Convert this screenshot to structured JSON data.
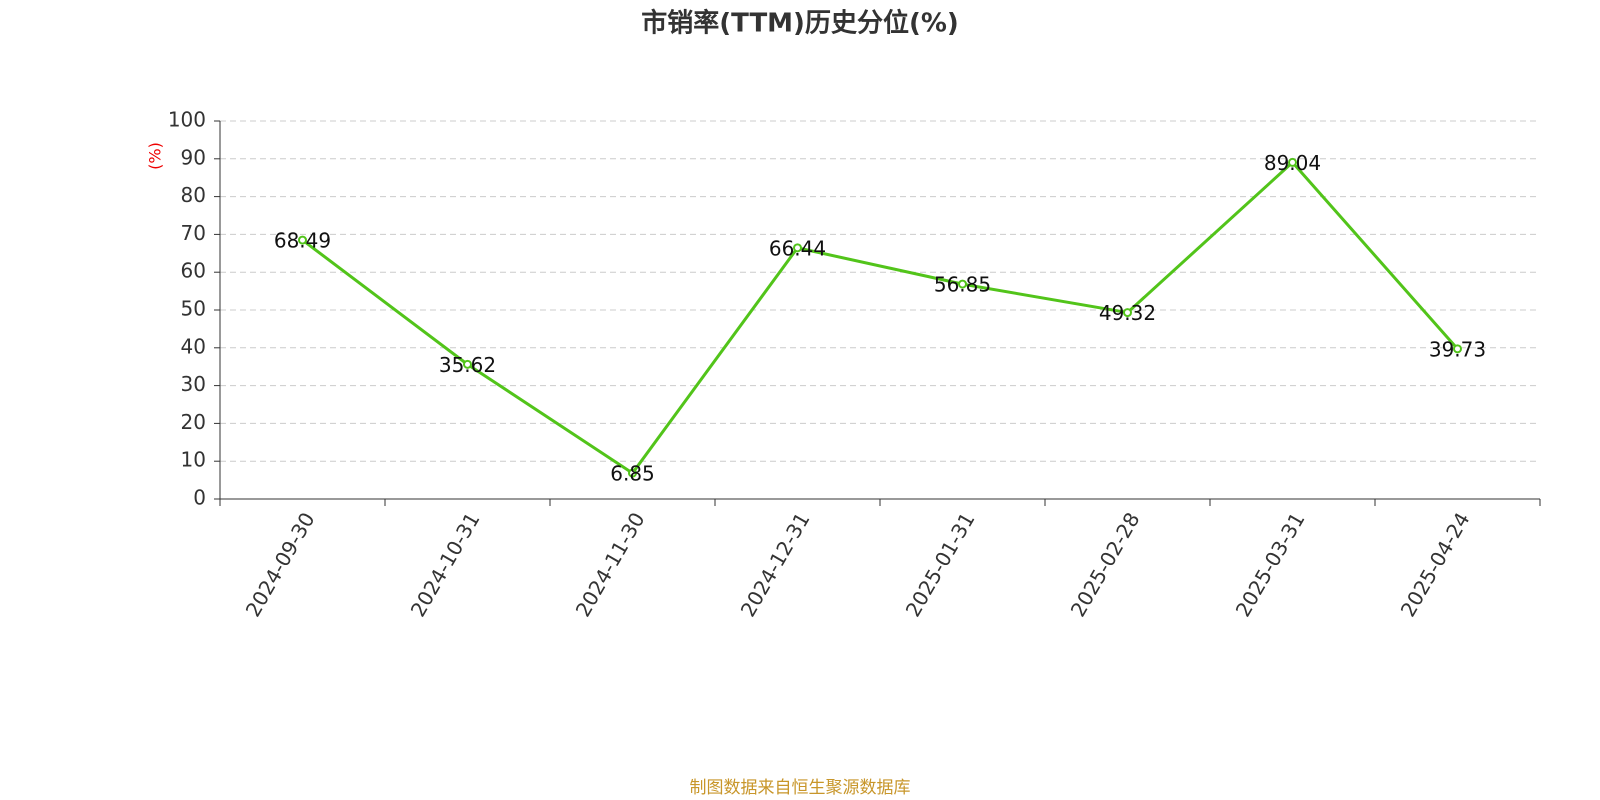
{
  "chart_data": {
    "type": "line",
    "title": "市销率(TTM)历史分位(%)",
    "y_label": "(%)",
    "categories": [
      "2024-09-30",
      "2024-10-31",
      "2024-11-30",
      "2024-12-31",
      "2025-01-31",
      "2025-02-28",
      "2025-03-31",
      "2025-04-24"
    ],
    "series": [
      {
        "name": "市销率(TTM)历史分位",
        "color": "#52c41a",
        "values": [
          68.49,
          35.62,
          6.85,
          66.44,
          56.85,
          49.32,
          89.04,
          39.73
        ]
      }
    ],
    "ylim": [
      0,
      100
    ],
    "yticks": [
      0,
      10,
      20,
      30,
      40,
      50,
      60,
      70,
      80,
      90,
      100
    ],
    "grid": true,
    "source": "制图数据来自恒生聚源数据库"
  }
}
